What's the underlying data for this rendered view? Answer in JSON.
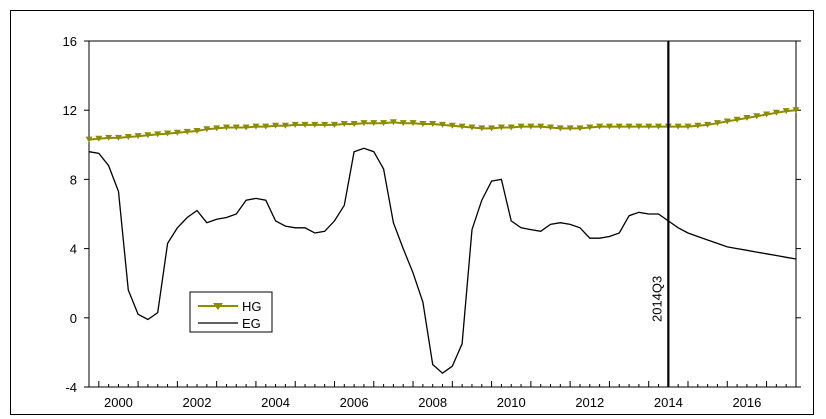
{
  "chart_data": {
    "type": "line",
    "title": "",
    "xlabel": "",
    "ylabel": "",
    "x_range": [
      1999.75,
      2017.75
    ],
    "ylim": [
      -4,
      16
    ],
    "y_ticks": [
      "-4",
      "0",
      "4",
      "8",
      "12",
      "16"
    ],
    "x_ticks": [
      "2000",
      "2002",
      "2004",
      "2006",
      "2008",
      "2010",
      "2012",
      "2014",
      "2016"
    ],
    "grid": false,
    "legend": {
      "placement": "lower-left"
    },
    "annotation": {
      "label": "2014Q3",
      "x": 2014.5
    },
    "series": [
      {
        "name": "HG",
        "color": "#8c8c00",
        "marker": "triangle-down",
        "x": [
          1999.75,
          2000,
          2000.25,
          2000.5,
          2000.75,
          2001,
          2001.25,
          2001.5,
          2001.75,
          2002,
          2002.25,
          2002.5,
          2002.75,
          2003,
          2003.25,
          2003.5,
          2003.75,
          2004,
          2004.25,
          2004.5,
          2004.75,
          2005,
          2005.25,
          2005.5,
          2005.75,
          2006,
          2006.25,
          2006.5,
          2006.75,
          2007,
          2007.25,
          2007.5,
          2007.75,
          2008,
          2008.25,
          2008.5,
          2008.75,
          2009,
          2009.25,
          2009.5,
          2009.75,
          2010,
          2010.25,
          2010.5,
          2010.75,
          2011,
          2011.25,
          2011.5,
          2011.75,
          2012,
          2012.25,
          2012.5,
          2012.75,
          2013,
          2013.25,
          2013.5,
          2013.75,
          2014,
          2014.25,
          2014.5,
          2014.75,
          2015,
          2015.25,
          2015.5,
          2015.75,
          2016,
          2016.25,
          2016.5,
          2016.75,
          2017,
          2017.25,
          2017.5,
          2017.75
        ],
        "values": [
          10.3,
          10.35,
          10.4,
          10.4,
          10.45,
          10.5,
          10.55,
          10.6,
          10.65,
          10.7,
          10.75,
          10.8,
          10.9,
          10.95,
          11.0,
          11.0,
          11.0,
          11.05,
          11.05,
          11.1,
          11.1,
          11.15,
          11.15,
          11.15,
          11.15,
          11.15,
          11.2,
          11.2,
          11.25,
          11.25,
          11.25,
          11.3,
          11.25,
          11.25,
          11.2,
          11.2,
          11.15,
          11.1,
          11.05,
          11.0,
          10.95,
          10.95,
          11.0,
          11.0,
          11.05,
          11.05,
          11.05,
          11.0,
          10.95,
          10.95,
          10.95,
          11.0,
          11.05,
          11.05,
          11.05,
          11.05,
          11.05,
          11.05,
          11.05,
          11.05,
          11.05,
          11.05,
          11.1,
          11.15,
          11.25,
          11.35,
          11.45,
          11.55,
          11.65,
          11.75,
          11.85,
          11.95,
          12.0
        ]
      },
      {
        "name": "EG",
        "color": "#000000",
        "marker": "none",
        "x": [
          1999.75,
          2000,
          2000.25,
          2000.5,
          2000.75,
          2001,
          2001.25,
          2001.5,
          2001.75,
          2002,
          2002.25,
          2002.5,
          2002.75,
          2003,
          2003.25,
          2003.5,
          2003.75,
          2004,
          2004.25,
          2004.5,
          2004.75,
          2005,
          2005.25,
          2005.5,
          2005.75,
          2006,
          2006.25,
          2006.5,
          2006.75,
          2007,
          2007.25,
          2007.5,
          2007.75,
          2008,
          2008.25,
          2008.5,
          2008.75,
          2009,
          2009.25,
          2009.5,
          2009.75,
          2010,
          2010.25,
          2010.5,
          2010.75,
          2011,
          2011.25,
          2011.5,
          2011.75,
          2012,
          2012.25,
          2012.5,
          2012.75,
          2013,
          2013.25,
          2013.5,
          2013.75,
          2014,
          2014.25,
          2014.5,
          2014.75,
          2015,
          2015.25,
          2015.5,
          2015.75,
          2016,
          2016.25,
          2016.5,
          2016.75,
          2017,
          2017.25,
          2017.5,
          2017.75
        ],
        "values": [
          9.6,
          9.5,
          8.8,
          7.3,
          1.6,
          0.2,
          -0.1,
          0.3,
          4.3,
          5.2,
          5.8,
          6.2,
          5.5,
          5.7,
          5.8,
          6.0,
          6.8,
          6.9,
          6.8,
          5.6,
          5.3,
          5.2,
          5.2,
          4.9,
          5.0,
          5.6,
          6.5,
          9.6,
          9.8,
          9.6,
          8.6,
          5.5,
          4.0,
          2.6,
          0.9,
          -2.7,
          -3.2,
          -2.8,
          -1.5,
          5.1,
          6.8,
          7.9,
          8.0,
          5.6,
          5.2,
          5.1,
          5.0,
          5.4,
          5.5,
          5.4,
          5.2,
          4.6,
          4.6,
          4.7,
          4.9,
          5.9,
          6.1,
          6.0,
          6.0,
          5.6,
          5.2,
          4.9,
          4.7,
          4.5,
          4.3,
          4.1,
          4.0,
          3.9,
          3.8,
          3.7,
          3.6,
          3.5,
          3.4
        ]
      }
    ]
  }
}
